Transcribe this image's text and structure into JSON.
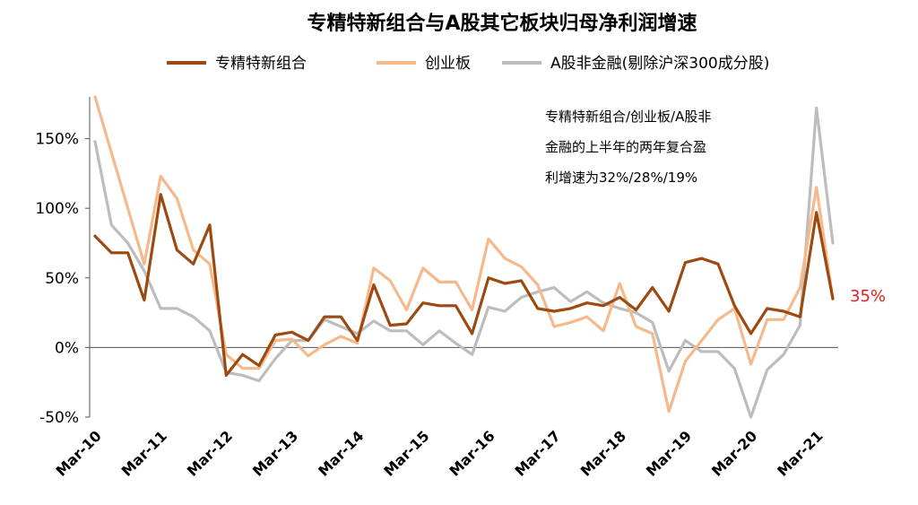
{
  "chart_data": {
    "type": "line",
    "title": "专精特新组合与A股其它板块归母净利润增速",
    "xlabel": "",
    "ylabel": "",
    "ylim": [
      -50,
      180
    ],
    "yticks": [
      "-50%",
      "0%",
      "50%",
      "100%",
      "150%"
    ],
    "ytick_values": [
      -50,
      0,
      50,
      100,
      150
    ],
    "x_tick_labels": [
      "Mar-10",
      "Mar-11",
      "Mar-12",
      "Mar-13",
      "Mar-14",
      "Mar-15",
      "Mar-16",
      "Mar-17",
      "Mar-18",
      "Mar-19",
      "Mar-20",
      "Mar-21"
    ],
    "x_start": "Mar-10",
    "x_end": "Jun-21",
    "annotation": [
      "专精特新组合/创业板/A股非",
      "金融的上半年的两年复合盈",
      "利增速为32%/28%/19%"
    ],
    "end_label": "35%",
    "legend_position": "top",
    "grid": false,
    "series": [
      {
        "name": "专精特新组合",
        "color": "#9C4A12",
        "values": [
          80,
          68,
          68,
          34,
          110,
          70,
          60,
          88,
          -20,
          -5,
          -13,
          9,
          11,
          5,
          22,
          22,
          5,
          45,
          16,
          17,
          32,
          30,
          30,
          10,
          50,
          46,
          48,
          28,
          26,
          28,
          32,
          30,
          36,
          27,
          43,
          26,
          61,
          64,
          60,
          30,
          10,
          28,
          26,
          22,
          97,
          35
        ]
      },
      {
        "name": "创业板",
        "color": "#F5B98C",
        "values": [
          185,
          140,
          100,
          60,
          123,
          107,
          70,
          60,
          -5,
          -15,
          -15,
          5,
          6,
          -6,
          2,
          8,
          3,
          57,
          48,
          27,
          57,
          47,
          47,
          27,
          78,
          64,
          58,
          45,
          15,
          18,
          22,
          12,
          46,
          15,
          10,
          -46,
          -10,
          5,
          20,
          28,
          -12,
          20,
          20,
          43,
          115,
          35
        ]
      },
      {
        "name": "A股非金融(剔除沪深300成分股)",
        "color": "#BDBDBD",
        "values": [
          148,
          88,
          75,
          55,
          28,
          28,
          22,
          12,
          -18,
          -20,
          -24,
          -8,
          5,
          5,
          20,
          15,
          10,
          19,
          12,
          12,
          2,
          12,
          3,
          -5,
          29,
          26,
          36,
          40,
          43,
          33,
          40,
          32,
          28,
          25,
          18,
          -17,
          5,
          -3,
          -3,
          -15,
          -50,
          -16,
          -5,
          16,
          172,
          75
        ]
      }
    ]
  }
}
